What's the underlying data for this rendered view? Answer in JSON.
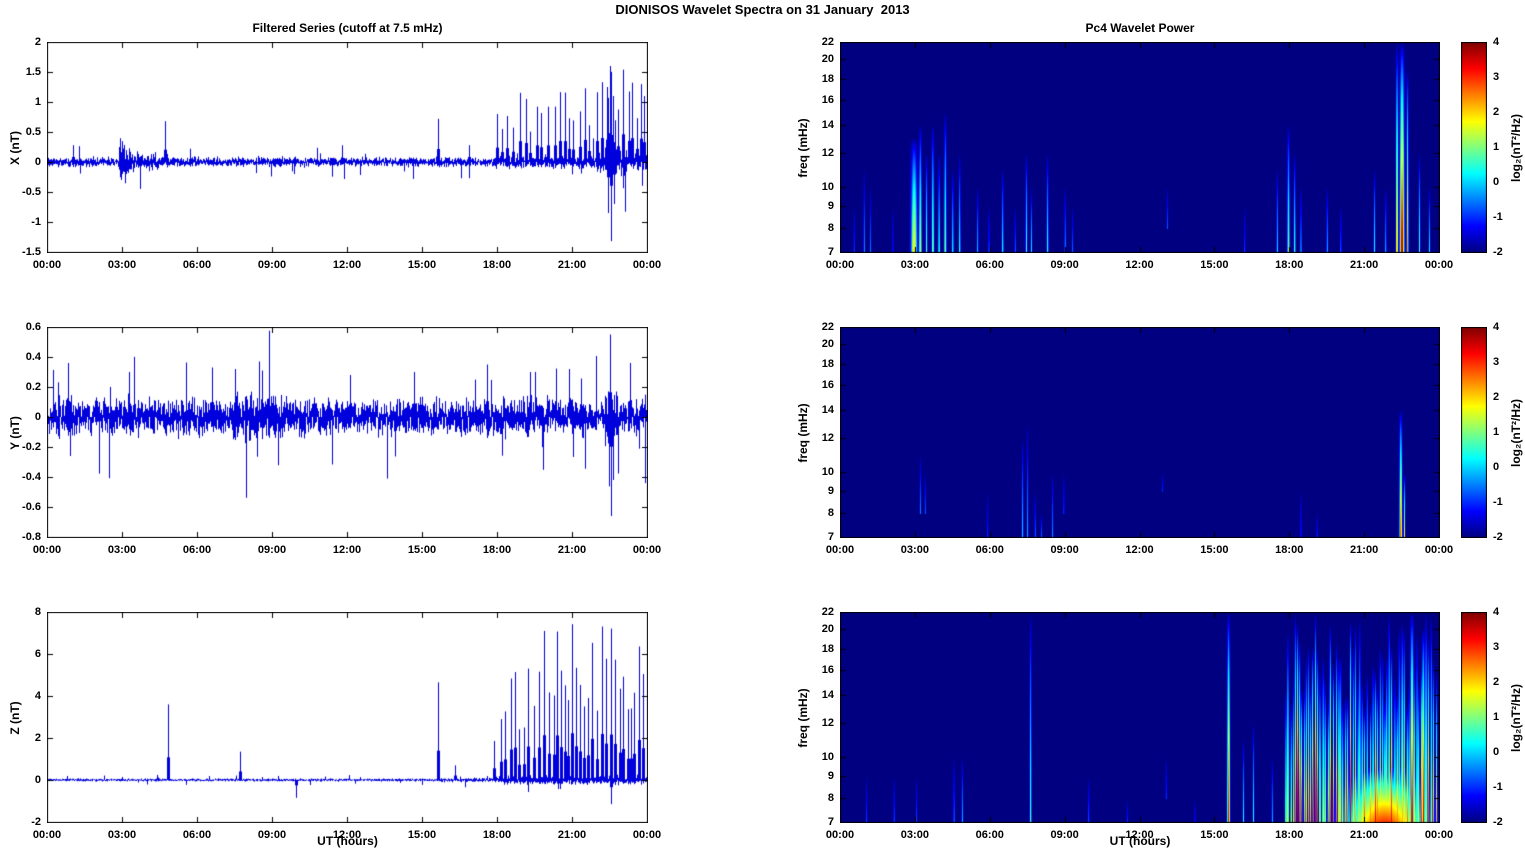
{
  "figure": {
    "title": "DIONISOS Wavelet Spectra on 31 January  2013",
    "left_title": "Filtered Series (cutoff at 7.5 mHz)",
    "right_title": "Pc4 Wavelet Power",
    "xlabel": "UT (hours)",
    "freq_label": "freq (mHz)",
    "line_color": "#0000dd",
    "background": "#ffffff"
  },
  "axes": {
    "time": {
      "min": 0,
      "max": 24,
      "ticks": [
        0,
        3,
        6,
        9,
        12,
        15,
        18,
        21,
        24
      ],
      "labels": [
        "00:00",
        "03:00",
        "06:00",
        "09:00",
        "12:00",
        "15:00",
        "18:00",
        "21:00",
        "00:00"
      ]
    },
    "freq": {
      "min": 7,
      "max": 22,
      "scale": "log",
      "ticks": [
        22,
        20,
        18,
        16,
        14,
        12,
        10,
        9,
        8,
        7
      ]
    },
    "colorbar": {
      "min": -2,
      "max": 4,
      "ticks": [
        4,
        3,
        2,
        1,
        0,
        -1,
        -2
      ],
      "label": "log₂(nT²/Hz)"
    }
  },
  "chart_data": [
    {
      "id": "ts_x",
      "type": "line",
      "panel": "X",
      "ylabel": "X (nT)",
      "ylim": [
        -1.5,
        2
      ],
      "yticks": [
        2,
        1.5,
        1,
        0.5,
        0,
        -0.5,
        -1,
        -1.5
      ],
      "seed": 11,
      "noise": [
        {
          "t0": 0,
          "t1": 24,
          "amp": 0.065
        },
        {
          "t0": 2.85,
          "t1": 3.35,
          "amp": 0.27
        },
        {
          "t0": 3.35,
          "t1": 4.45,
          "amp": 0.12
        },
        {
          "t0": 17.8,
          "t1": 22.0,
          "amp": 0.09
        },
        {
          "t0": 22.0,
          "t1": 23.2,
          "amp": 0.2
        },
        {
          "t0": 23.2,
          "t1": 24,
          "amp": 0.1
        }
      ],
      "spikes": [
        {
          "t": 1.05,
          "a": 0.28
        },
        {
          "t": 4.72,
          "a": 0.68
        },
        {
          "t": 15.63,
          "a": 0.72
        },
        {
          "t": 16.9,
          "a": 0.28
        },
        {
          "t": 22.4,
          "a": 1.25
        },
        {
          "t": 22.5,
          "a": 1.6
        },
        {
          "t": 22.62,
          "a": 1.1
        },
        {
          "t": 22.45,
          "a": -0.85
        },
        {
          "t": 22.55,
          "a": -1.32
        },
        {
          "t": 22.66,
          "a": -0.7
        },
        {
          "t": 23.9,
          "a": 1.1
        }
      ],
      "trains": [
        {
          "t0": 18.0,
          "t1": 21.9,
          "step": 0.22,
          "amin": 0.5,
          "amax": 1.35
        },
        {
          "t0": 22.0,
          "t1": 23.9,
          "step": 0.18,
          "amin": 0.6,
          "amax": 1.55
        }
      ]
    },
    {
      "id": "ts_y",
      "type": "line",
      "panel": "Y",
      "ylabel": "Y (nT)",
      "ylim": [
        -0.8,
        0.6
      ],
      "yticks": [
        0.6,
        0.4,
        0.2,
        0,
        -0.2,
        -0.4,
        -0.6,
        -0.8
      ],
      "seed": 22,
      "noise": [
        {
          "t0": 0,
          "t1": 24,
          "amp": 0.1
        },
        {
          "t0": 7.4,
          "t1": 9.2,
          "amp": 0.13
        },
        {
          "t0": 22.3,
          "t1": 22.8,
          "amp": 0.16
        }
      ],
      "spikes": [
        {
          "t": 0.82,
          "a": 0.36
        },
        {
          "t": 0.9,
          "a": -0.26
        },
        {
          "t": 3.3,
          "a": 0.3
        },
        {
          "t": 6.6,
          "a": 0.33
        },
        {
          "t": 7.5,
          "a": 0.32
        },
        {
          "t": 8.6,
          "a": 0.31
        },
        {
          "t": 12.1,
          "a": 0.28
        },
        {
          "t": 14.7,
          "a": 0.3
        },
        {
          "t": 17.6,
          "a": 0.35
        },
        {
          "t": 19.3,
          "a": 0.3
        },
        {
          "t": 20.9,
          "a": 0.32
        },
        {
          "t": 22.5,
          "a": 0.55
        },
        {
          "t": 22.56,
          "a": -0.66
        },
        {
          "t": 22.62,
          "a": -0.42
        },
        {
          "t": 23.3,
          "a": 0.36
        }
      ],
      "trains": []
    },
    {
      "id": "ts_z",
      "type": "line",
      "panel": "Z",
      "ylabel": "Z (nT)",
      "ylim": [
        -2,
        8
      ],
      "yticks": [
        8,
        6,
        4,
        2,
        0,
        -2
      ],
      "seed": 33,
      "noise": [
        {
          "t0": 0,
          "t1": 15.6,
          "amp": 0.055
        },
        {
          "t0": 15.6,
          "t1": 17.9,
          "amp": 0.08
        },
        {
          "t0": 17.9,
          "t1": 24,
          "amp": 0.17
        }
      ],
      "spikes": [
        {
          "t": 4.85,
          "a": 3.6
        },
        {
          "t": 7.7,
          "a": 1.35
        },
        {
          "t": 9.95,
          "a": -0.85
        },
        {
          "t": 15.63,
          "a": 4.65
        },
        {
          "t": 16.3,
          "a": 0.7
        },
        {
          "t": 22.55,
          "a": -1.15
        }
      ],
      "trains": [
        {
          "t0": 17.9,
          "t1": 19.9,
          "step": 0.2,
          "amin": 1.5,
          "amax": 5.5
        },
        {
          "t0": 19.9,
          "t1": 23.93,
          "step": 0.16,
          "amin": 2.5,
          "amax": 7.5
        }
      ]
    },
    {
      "id": "sp_x",
      "type": "heatmap",
      "panel": "X",
      "clim": [
        -2,
        4
      ],
      "seed": 44,
      "events": [
        {
          "t": 0.55,
          "w": 0.04,
          "f0": 7,
          "f1": 9,
          "v": -0.8
        },
        {
          "t": 0.95,
          "w": 0.05,
          "f0": 7,
          "f1": 11,
          "v": -0.1
        },
        {
          "t": 1.2,
          "w": 0.04,
          "f0": 7,
          "f1": 10,
          "v": -0.5
        },
        {
          "t": 2.1,
          "w": 0.04,
          "f0": 7,
          "f1": 9,
          "v": -0.9
        },
        {
          "t": 2.95,
          "w": 0.22,
          "f0": 7,
          "f1": 13,
          "v": 2.1
        },
        {
          "t": 3.2,
          "w": 0.1,
          "f0": 7,
          "f1": 14,
          "v": 1.6
        },
        {
          "t": 3.45,
          "w": 0.07,
          "f0": 7,
          "f1": 12,
          "v": 0.9
        },
        {
          "t": 3.7,
          "w": 0.09,
          "f0": 7,
          "f1": 14,
          "v": 1.3
        },
        {
          "t": 3.95,
          "w": 0.07,
          "f0": 7,
          "f1": 12,
          "v": 0.8
        },
        {
          "t": 4.2,
          "w": 0.09,
          "f0": 7,
          "f1": 15,
          "v": 1.2
        },
        {
          "t": 4.5,
          "w": 0.07,
          "f0": 7,
          "f1": 11,
          "v": 0.5
        },
        {
          "t": 4.78,
          "w": 0.06,
          "f0": 7,
          "f1": 12,
          "v": 0.8
        },
        {
          "t": 5.5,
          "w": 0.05,
          "f0": 7,
          "f1": 10,
          "v": 0.2
        },
        {
          "t": 5.95,
          "w": 0.04,
          "f0": 7,
          "f1": 9,
          "v": -0.4
        },
        {
          "t": 6.5,
          "w": 0.07,
          "f0": 7,
          "f1": 11,
          "v": 0.5
        },
        {
          "t": 7.0,
          "w": 0.04,
          "f0": 7,
          "f1": 9,
          "v": -0.5
        },
        {
          "t": 7.45,
          "w": 0.07,
          "f0": 7,
          "f1": 12,
          "v": 0.7
        },
        {
          "t": 7.65,
          "w": 0.05,
          "f0": 7,
          "f1": 10,
          "v": 0.2
        },
        {
          "t": 8.3,
          "w": 0.07,
          "f0": 7,
          "f1": 12,
          "v": 0.6
        },
        {
          "t": 9.0,
          "w": 0.05,
          "f0": 7,
          "f1": 10,
          "v": 0.1
        },
        {
          "t": 9.3,
          "w": 0.04,
          "f0": 7,
          "f1": 9,
          "v": -0.6
        },
        {
          "t": 13.1,
          "w": 0.04,
          "f0": 8,
          "f1": 10,
          "v": -0.7
        },
        {
          "t": 16.2,
          "w": 0.04,
          "f0": 7,
          "f1": 9,
          "v": -0.7
        },
        {
          "t": 17.5,
          "w": 0.06,
          "f0": 7,
          "f1": 11,
          "v": 0.3
        },
        {
          "t": 17.95,
          "w": 0.09,
          "f0": 7,
          "f1": 14,
          "v": 1.2
        },
        {
          "t": 18.2,
          "w": 0.07,
          "f0": 7,
          "f1": 12,
          "v": 0.8
        },
        {
          "t": 18.45,
          "w": 0.05,
          "f0": 7,
          "f1": 10,
          "v": 0.3
        },
        {
          "t": 19.5,
          "w": 0.05,
          "f0": 7,
          "f1": 10,
          "v": 0.2
        },
        {
          "t": 20.05,
          "w": 0.04,
          "f0": 7,
          "f1": 9,
          "v": -0.3
        },
        {
          "t": 21.4,
          "w": 0.06,
          "f0": 7,
          "f1": 11,
          "v": 0.5
        },
        {
          "t": 21.85,
          "w": 0.05,
          "f0": 7,
          "f1": 10,
          "v": 0.2
        },
        {
          "t": 22.3,
          "w": 0.08,
          "f0": 7,
          "f1": 22,
          "v": 2.8
        },
        {
          "t": 22.5,
          "w": 0.16,
          "f0": 7,
          "f1": 22,
          "v": 4.0
        },
        {
          "t": 22.72,
          "w": 0.07,
          "f0": 7,
          "f1": 19,
          "v": 2.4
        },
        {
          "t": 23.2,
          "w": 0.06,
          "f0": 7,
          "f1": 12,
          "v": 0.7
        },
        {
          "t": 23.6,
          "w": 0.05,
          "f0": 7,
          "f1": 10,
          "v": 0.2
        }
      ],
      "trains": []
    },
    {
      "id": "sp_y",
      "type": "heatmap",
      "panel": "Y",
      "clim": [
        -2,
        4
      ],
      "seed": 55,
      "events": [
        {
          "t": 3.2,
          "w": 0.05,
          "f0": 8,
          "f1": 11,
          "v": -0.4
        },
        {
          "t": 3.4,
          "w": 0.04,
          "f0": 8,
          "f1": 10,
          "v": -0.7
        },
        {
          "t": 5.9,
          "w": 0.04,
          "f0": 7,
          "f1": 9,
          "v": -0.9
        },
        {
          "t": 7.3,
          "w": 0.06,
          "f0": 7,
          "f1": 12,
          "v": 0.2
        },
        {
          "t": 7.5,
          "w": 0.05,
          "f0": 7,
          "f1": 13,
          "v": -0.1
        },
        {
          "t": 7.8,
          "w": 0.05,
          "f0": 7,
          "f1": 9,
          "v": -0.4
        },
        {
          "t": 8.05,
          "w": 0.04,
          "f0": 7,
          "f1": 8,
          "v": -0.6
        },
        {
          "t": 8.5,
          "w": 0.05,
          "f0": 7,
          "f1": 10,
          "v": -0.3
        },
        {
          "t": 8.95,
          "w": 0.04,
          "f0": 8,
          "f1": 10,
          "v": -0.7
        },
        {
          "t": 12.9,
          "w": 0.04,
          "f0": 9,
          "f1": 10,
          "v": -1.0
        },
        {
          "t": 18.45,
          "w": 0.04,
          "f0": 7,
          "f1": 9,
          "v": -0.7
        },
        {
          "t": 19.1,
          "w": 0.04,
          "f0": 7,
          "f1": 8,
          "v": -0.9
        },
        {
          "t": 22.45,
          "w": 0.1,
          "f0": 7,
          "f1": 14,
          "v": 3.1
        },
        {
          "t": 22.6,
          "w": 0.05,
          "f0": 7,
          "f1": 10,
          "v": 1.8
        }
      ],
      "trains": []
    },
    {
      "id": "sp_z",
      "type": "heatmap",
      "panel": "Z",
      "clim": [
        -2,
        4
      ],
      "seed": 66,
      "events": [
        {
          "t": 1.05,
          "w": 0.04,
          "f0": 7,
          "f1": 9,
          "v": -0.8
        },
        {
          "t": 2.15,
          "w": 0.04,
          "f0": 7,
          "f1": 9,
          "v": -0.6
        },
        {
          "t": 3.05,
          "w": 0.04,
          "f0": 7,
          "f1": 9,
          "v": -0.8
        },
        {
          "t": 4.55,
          "w": 0.05,
          "f0": 7,
          "f1": 10,
          "v": -0.2
        },
        {
          "t": 4.88,
          "w": 0.05,
          "f0": 7,
          "f1": 10,
          "v": 0.0
        },
        {
          "t": 7.62,
          "w": 0.07,
          "f0": 7,
          "f1": 22,
          "v": 0.9
        },
        {
          "t": 9.95,
          "w": 0.04,
          "f0": 7,
          "f1": 9,
          "v": -0.5
        },
        {
          "t": 11.5,
          "w": 0.04,
          "f0": 7,
          "f1": 8,
          "v": -1.0
        },
        {
          "t": 13.05,
          "w": 0.04,
          "f0": 8,
          "f1": 10,
          "v": -0.8
        },
        {
          "t": 14.2,
          "w": 0.04,
          "f0": 7,
          "f1": 8,
          "v": -1.0
        },
        {
          "t": 15.55,
          "w": 0.1,
          "f0": 7,
          "f1": 22,
          "v": 3.4
        },
        {
          "t": 16.15,
          "w": 0.05,
          "f0": 7,
          "f1": 11,
          "v": 0.4
        },
        {
          "t": 16.55,
          "w": 0.05,
          "f0": 7,
          "f1": 12,
          "v": 0.5
        },
        {
          "t": 17.3,
          "w": 0.04,
          "f0": 7,
          "f1": 10,
          "v": 0.0
        },
        {
          "t": 21.8,
          "w": 3.0,
          "f0": 7,
          "f1": 9.5,
          "v": 3.0
        },
        {
          "t": 22.9,
          "w": 0.12,
          "f0": 7,
          "f1": 22,
          "v": 4.0
        },
        {
          "t": 23.35,
          "w": 0.1,
          "f0": 7,
          "f1": 20,
          "v": 3.8
        }
      ],
      "trains": [
        {
          "t0": 17.85,
          "t1": 23.95,
          "step": 0.1,
          "w": 0.045,
          "f1_min": 13,
          "f1_max": 22,
          "v_min": 2.2,
          "v_max": 3.9
        }
      ]
    }
  ]
}
